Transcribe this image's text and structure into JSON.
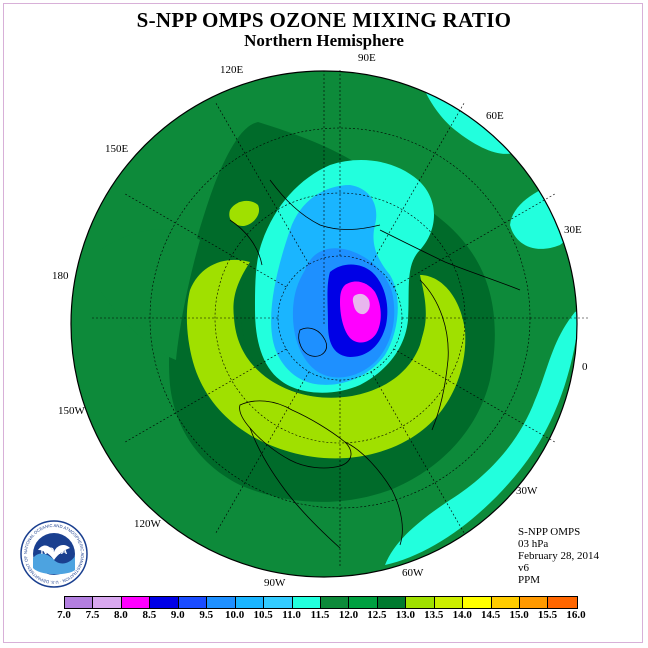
{
  "title": "S-NPP OMPS OZONE MIXING RATIO",
  "subtitle": "Northern Hemisphere",
  "longitude_labels": [
    "90E",
    "60E",
    "30E",
    "0",
    "30W",
    "60W",
    "90W",
    "120W",
    "150W",
    "180",
    "150E",
    "120E"
  ],
  "info": {
    "instrument": "S-NPP OMPS",
    "level": "03 hPa",
    "date": "February 28, 2014",
    "version": "v6",
    "units": "PPM"
  },
  "logo": {
    "icon": "noaa-logo",
    "text": "NOAA",
    "ring_text": "NATIONAL OCEANIC AND ATMOSPHERIC ADMINISTRATION · U.S. DEPARTMENT OF COMMERCE"
  },
  "colorbar": {
    "labels": [
      "7.0",
      "7.5",
      "8.0",
      "8.5",
      "9.0",
      "9.5",
      "10.0",
      "10.5",
      "11.0",
      "11.5",
      "12.0",
      "12.5",
      "13.0",
      "13.5",
      "14.0",
      "14.5",
      "15.0",
      "15.5",
      "16.0"
    ],
    "colors": [
      "#b37fe0",
      "#d9a8f0",
      "#ff00ff",
      "#0000e6",
      "#1a4cff",
      "#1e90ff",
      "#1ab5ff",
      "#33ccff",
      "#22ffdd",
      "#0d8a3a",
      "#00a040",
      "#007a2e",
      "#a0e000",
      "#ccee00",
      "#ffff00",
      "#ffcc00",
      "#ff9900",
      "#ff6600",
      "#ff0000",
      "#8b4513"
    ]
  },
  "colors": {
    "background_green": "#0d8a3a",
    "dark_green": "#006b2a",
    "yellow_green": "#a0e000",
    "cyan": "#22ffdd",
    "light_blue": "#1ab5ff",
    "blue": "#1e90ff",
    "deep_blue": "#0000e6",
    "magenta": "#ff00ff",
    "pink": "#e8b6ee"
  }
}
